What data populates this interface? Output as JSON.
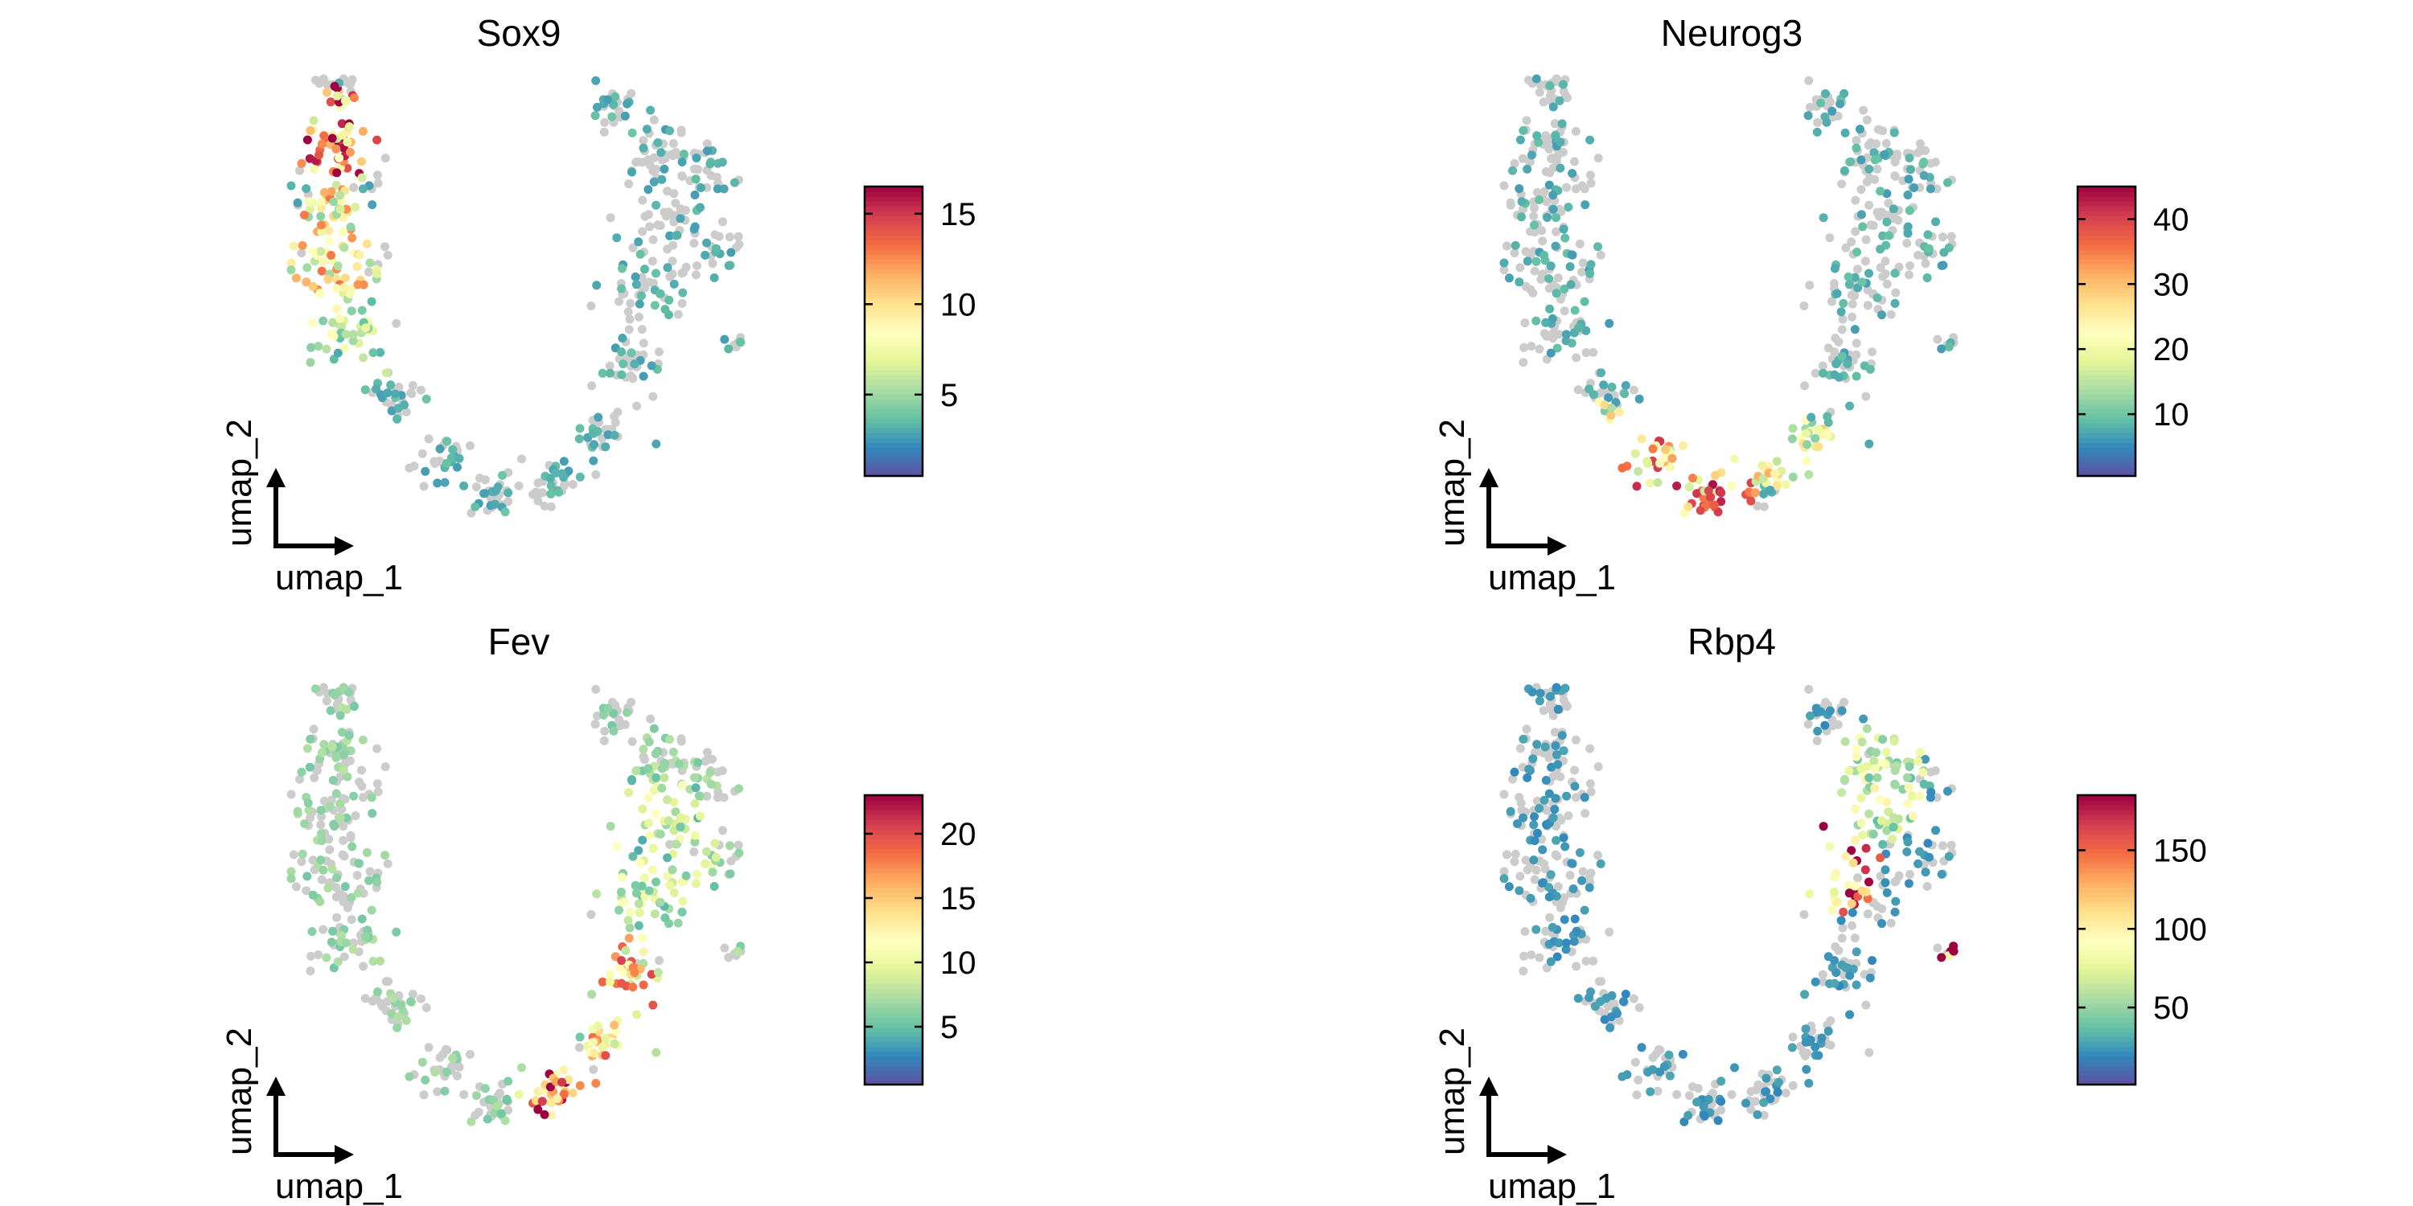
{
  "chart_data": [
    {
      "type": "scatter",
      "title": "Sox9",
      "xlabel": "umap_1",
      "ylabel": "umap_2",
      "colorbar_ticks": [
        5,
        10,
        15
      ],
      "color_range": [
        0.5,
        16.5
      ],
      "hotspots": [
        {
          "x": 0.1,
          "y": 0.86,
          "rx": 0.07,
          "ry": 0.09,
          "v": 12
        },
        {
          "x": 0.08,
          "y": 0.58,
          "rx": 0.08,
          "ry": 0.12,
          "v": 9
        },
        {
          "x": 0.12,
          "y": 0.4,
          "rx": 0.08,
          "ry": 0.08,
          "v": 6
        }
      ],
      "background_level": 3,
      "base_low": 1
    },
    {
      "type": "scatter",
      "title": "Neurog3",
      "xlabel": "umap_1",
      "ylabel": "umap_2",
      "colorbar_ticks": [
        10,
        20,
        30,
        40
      ],
      "color_range": [
        0.5,
        45
      ],
      "hotspots": [
        {
          "x": 0.35,
          "y": 0.08,
          "rx": 0.16,
          "ry": 0.08,
          "v": 30
        },
        {
          "x": 0.2,
          "y": 0.18,
          "rx": 0.09,
          "ry": 0.07,
          "v": 20
        },
        {
          "x": 0.65,
          "y": 0.15,
          "rx": 0.08,
          "ry": 0.06,
          "v": 22
        }
      ],
      "background_level": 8,
      "base_low": 2
    },
    {
      "type": "scatter",
      "title": "Fev",
      "xlabel": "umap_1",
      "ylabel": "umap_2",
      "colorbar_ticks": [
        5,
        10,
        15,
        20
      ],
      "color_range": [
        0.5,
        23
      ],
      "hotspots": [
        {
          "x": 0.58,
          "y": 0.08,
          "rx": 0.07,
          "ry": 0.07,
          "v": 19
        },
        {
          "x": 0.72,
          "y": 0.3,
          "rx": 0.07,
          "ry": 0.12,
          "v": 14
        },
        {
          "x": 0.8,
          "y": 0.62,
          "rx": 0.1,
          "ry": 0.15,
          "v": 8
        }
      ],
      "background_level": 6,
      "base_low": 2
    },
    {
      "type": "scatter",
      "title": "Rbp4",
      "xlabel": "umap_1",
      "ylabel": "umap_2",
      "colorbar_ticks": [
        50,
        100,
        150
      ],
      "color_range": [
        1,
        185
      ],
      "hotspots": [
        {
          "x": 0.72,
          "y": 0.62,
          "rx": 0.08,
          "ry": 0.1,
          "v": 150
        },
        {
          "x": 0.8,
          "y": 0.78,
          "rx": 0.1,
          "ry": 0.1,
          "v": 70
        },
        {
          "x": 0.96,
          "y": 0.4,
          "rx": 0.03,
          "ry": 0.03,
          "v": 175
        }
      ],
      "background_level": 25,
      "base_low": 5
    }
  ]
}
